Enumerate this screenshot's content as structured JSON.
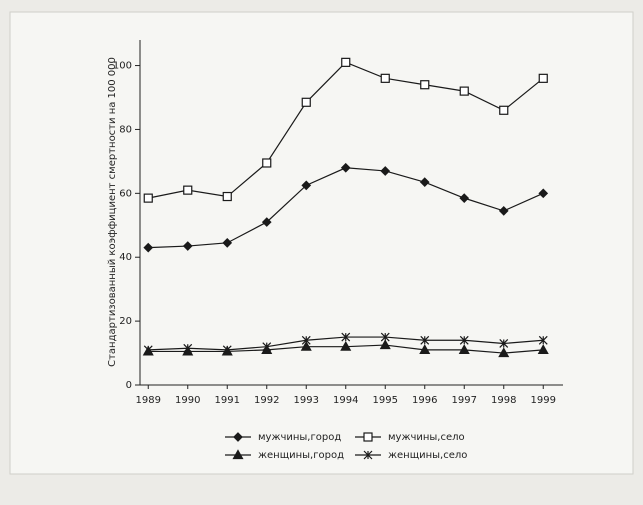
{
  "chart_data": {
    "type": "line",
    "y_label": "Стандартизованный коэффициент смертности на 100 000",
    "categories": [
      "1989",
      "1990",
      "1991",
      "1992",
      "1993",
      "1994",
      "1995",
      "1996",
      "1997",
      "1998",
      "1999"
    ],
    "series": [
      {
        "name": "мужчины,город",
        "color": "#1a1a1a",
        "marker": "diamond",
        "values": [
          43,
          43.5,
          44.5,
          51,
          62.5,
          68,
          67,
          63.5,
          58.5,
          54.5,
          60
        ]
      },
      {
        "name": "мужчины,село",
        "color": "#1a1a1a",
        "marker": "square",
        "values": [
          58.5,
          61,
          59,
          69.5,
          88.5,
          101,
          96,
          94,
          92,
          86,
          96
        ]
      },
      {
        "name": "женщины,город",
        "color": "#1a1a1a",
        "marker": "triangle",
        "values": [
          10.5,
          10.5,
          10.5,
          11,
          12,
          12,
          12.5,
          11,
          11,
          10,
          11
        ]
      },
      {
        "name": "женщины,село",
        "color": "#1a1a1a",
        "marker": "star",
        "values": [
          11,
          11.5,
          11,
          12,
          14,
          15,
          15,
          14,
          14,
          13,
          14
        ]
      }
    ],
    "ylim": [
      0,
      108
    ],
    "yticks": [
      0,
      20,
      40,
      60,
      80,
      100
    ]
  }
}
